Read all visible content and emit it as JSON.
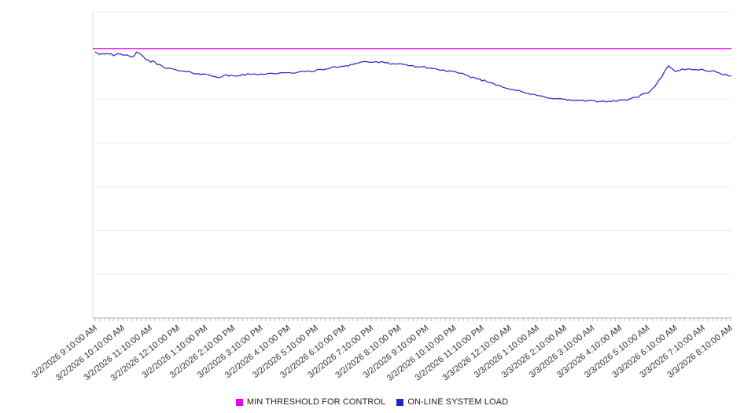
{
  "chart_data": {
    "type": "line",
    "title": "",
    "xlabel": "",
    "ylabel": "",
    "ylim": [
      0,
      100
    ],
    "y_divisions": 7,
    "y_tick_labels": [],
    "y_axis_labeled": false,
    "grid": true,
    "legend_position": "bottom",
    "x_tick_labels": [
      "3/2/2026 9:10:00 AM",
      "3/2/2026 10:10:00 AM",
      "3/2/2026 11:10:00 AM",
      "3/2/2026 12:10:00 PM",
      "3/2/2026 1:10:00 PM",
      "3/2/2026 2:10:00 PM",
      "3/2/2026 3:10:00 PM",
      "3/2/2026 4:10:00 PM",
      "3/2/2026 5:10:00 PM",
      "3/2/2026 6:10:00 PM",
      "3/2/2026 7:10:00 PM",
      "3/2/2026 8:10:00 PM",
      "3/2/2026 9:10:00 PM",
      "3/2/2026 10:10:00 PM",
      "3/2/2026 11:10:00 PM",
      "3/3/2026 12:10:00 AM",
      "3/3/2026 1:10:00 AM",
      "3/3/2026 2:10:00 AM",
      "3/3/2026 3:10:00 AM",
      "3/3/2026 4:10:00 AM",
      "3/3/2026 5:10:00 AM",
      "3/3/2026 6:10:00 AM",
      "3/3/2026 7:10:00 AM",
      "3/3/2026 8:10:00 AM"
    ],
    "x_interval_minutes": 15,
    "x_start": "3/2/2026 9:10:00 AM",
    "x_end": "3/3/2026 8:10:00 AM",
    "series": [
      {
        "name": "MIN THRESHOLD FOR CONTROL",
        "color": "#ee00ee",
        "type": "constant",
        "value": 88
      },
      {
        "name": "ON-LINE SYSTEM LOAD",
        "color": "#2222cc",
        "type": "line",
        "values": [
          86.9,
          86.3,
          86.7,
          85.7,
          85.9,
          85.3,
          86.4,
          85.2,
          83.8,
          82.9,
          82.0,
          81.3,
          80.8,
          80.4,
          80.1,
          79.8,
          79.5,
          79.1,
          78.7,
          79.2,
          79.0,
          79.3,
          79.5,
          79.6,
          79.7,
          79.8,
          79.9,
          79.9,
          80.0,
          80.2,
          80.4,
          80.6,
          80.8,
          81.2,
          81.6,
          82.0,
          82.3,
          82.7,
          83.3,
          83.7,
          83.6,
          83.5,
          83.3,
          83.1,
          82.8,
          82.6,
          82.3,
          82.0,
          81.8,
          81.4,
          81.0,
          80.7,
          80.3,
          79.7,
          79.0,
          78.4,
          77.7,
          77.0,
          76.3,
          75.6,
          74.9,
          74.3,
          73.7,
          73.1,
          72.6,
          72.2,
          71.9,
          71.6,
          71.3,
          71.1,
          71.0,
          70.9,
          70.8,
          70.7,
          70.8,
          70.9,
          71.0,
          71.3,
          71.9,
          72.7,
          73.6,
          75.3,
          78.8,
          82.3,
          80.3,
          81.2,
          81.3,
          81.2,
          81.0,
          80.7,
          80.3,
          79.6,
          79.0
        ]
      }
    ],
    "style_colors": {
      "gridline": "#ececec",
      "axis": "#adadad",
      "axis_left": "#dddddd",
      "tick": "#bbbbbb",
      "label_text": "#333333"
    }
  }
}
